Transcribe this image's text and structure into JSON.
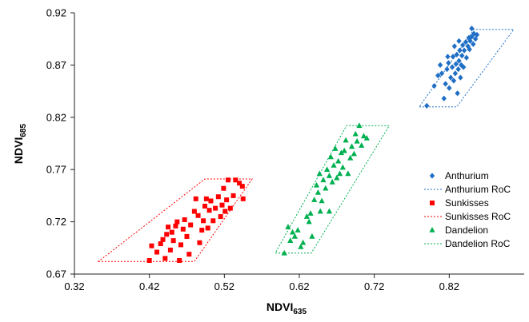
{
  "chart_data": {
    "type": "scatter",
    "xlabel": {
      "main": "NDVI",
      "sub": "635"
    },
    "ylabel": {
      "main": "NDVI",
      "sub": "685"
    },
    "xlim": [
      0.32,
      0.92
    ],
    "ylim": [
      0.67,
      0.92
    ],
    "x_ticks": [
      "0.32",
      "0.42",
      "0.52",
      "0.62",
      "0.72",
      "0.82"
    ],
    "y_ticks": [
      "0.67",
      "0.72",
      "0.77",
      "0.82",
      "0.87",
      "0.92"
    ],
    "legend_position": "right",
    "series": [
      {
        "name": "Anthurium",
        "marker": "diamond",
        "color": "#1F6FC5",
        "points": [
          [
            0.79,
            0.831
          ],
          [
            0.8,
            0.85
          ],
          [
            0.805,
            0.86
          ],
          [
            0.81,
            0.862
          ],
          [
            0.813,
            0.838
          ],
          [
            0.815,
            0.852
          ],
          [
            0.817,
            0.866
          ],
          [
            0.819,
            0.872
          ],
          [
            0.82,
            0.848
          ],
          [
            0.822,
            0.858
          ],
          [
            0.824,
            0.868
          ],
          [
            0.825,
            0.878
          ],
          [
            0.826,
            0.855
          ],
          [
            0.828,
            0.862
          ],
          [
            0.829,
            0.871
          ],
          [
            0.83,
            0.88
          ],
          [
            0.831,
            0.843
          ],
          [
            0.832,
            0.866
          ],
          [
            0.833,
            0.874
          ],
          [
            0.834,
            0.884
          ],
          [
            0.835,
            0.858
          ],
          [
            0.836,
            0.87
          ],
          [
            0.837,
            0.879
          ],
          [
            0.838,
            0.889
          ],
          [
            0.839,
            0.868
          ],
          [
            0.84,
            0.884
          ],
          [
            0.842,
            0.892
          ],
          [
            0.843,
            0.877
          ],
          [
            0.845,
            0.888
          ],
          [
            0.846,
            0.896
          ],
          [
            0.847,
            0.885
          ],
          [
            0.848,
            0.893
          ],
          [
            0.85,
            0.897
          ],
          [
            0.852,
            0.89
          ],
          [
            0.853,
            0.9
          ],
          [
            0.855,
            0.895
          ],
          [
            0.857,
            0.899
          ],
          [
            0.85,
            0.905
          ],
          [
            0.827,
            0.888
          ],
          [
            0.818,
            0.878
          ],
          [
            0.808,
            0.87
          ],
          [
            0.833,
            0.893
          ]
        ]
      },
      {
        "name": "Sunkisses",
        "marker": "square",
        "color": "#FF0000",
        "points": [
          [
            0.42,
            0.683
          ],
          [
            0.423,
            0.697
          ],
          [
            0.43,
            0.691
          ],
          [
            0.435,
            0.699
          ],
          [
            0.438,
            0.703
          ],
          [
            0.441,
            0.685
          ],
          [
            0.443,
            0.708
          ],
          [
            0.445,
            0.715
          ],
          [
            0.448,
            0.693
          ],
          [
            0.45,
            0.71
          ],
          [
            0.452,
            0.702
          ],
          [
            0.455,
            0.716
          ],
          [
            0.457,
            0.72
          ],
          [
            0.46,
            0.683
          ],
          [
            0.462,
            0.698
          ],
          [
            0.465,
            0.713
          ],
          [
            0.467,
            0.722
          ],
          [
            0.47,
            0.706
          ],
          [
            0.473,
            0.689
          ],
          [
            0.475,
            0.717
          ],
          [
            0.48,
            0.73
          ],
          [
            0.482,
            0.742
          ],
          [
            0.485,
            0.726
          ],
          [
            0.487,
            0.7
          ],
          [
            0.49,
            0.712
          ],
          [
            0.492,
            0.721
          ],
          [
            0.494,
            0.735
          ],
          [
            0.496,
            0.742
          ],
          [
            0.498,
            0.714
          ],
          [
            0.5,
            0.731
          ],
          [
            0.502,
            0.74
          ],
          [
            0.505,
            0.721
          ],
          [
            0.508,
            0.733
          ],
          [
            0.512,
            0.744
          ],
          [
            0.515,
            0.725
          ],
          [
            0.517,
            0.736
          ],
          [
            0.519,
            0.752
          ],
          [
            0.521,
            0.73
          ],
          [
            0.523,
            0.741
          ],
          [
            0.525,
            0.76
          ],
          [
            0.528,
            0.733
          ],
          [
            0.532,
            0.745
          ],
          [
            0.535,
            0.76
          ],
          [
            0.54,
            0.757
          ],
          [
            0.545,
            0.742
          ],
          [
            0.544,
            0.754
          ]
        ]
      },
      {
        "name": "Dandelion",
        "marker": "triangle",
        "color": "#00B050",
        "points": [
          [
            0.6,
            0.69
          ],
          [
            0.605,
            0.715
          ],
          [
            0.608,
            0.702
          ],
          [
            0.611,
            0.71
          ],
          [
            0.614,
            0.706
          ],
          [
            0.618,
            0.712
          ],
          [
            0.622,
            0.696
          ],
          [
            0.625,
            0.7
          ],
          [
            0.63,
            0.725
          ],
          [
            0.633,
            0.72
          ],
          [
            0.635,
            0.728
          ],
          [
            0.637,
            0.706
          ],
          [
            0.64,
            0.741
          ],
          [
            0.643,
            0.755
          ],
          [
            0.645,
            0.748
          ],
          [
            0.647,
            0.766
          ],
          [
            0.65,
            0.74
          ],
          [
            0.652,
            0.76
          ],
          [
            0.655,
            0.752
          ],
          [
            0.657,
            0.77
          ],
          [
            0.66,
            0.764
          ],
          [
            0.662,
            0.782
          ],
          [
            0.664,
            0.758
          ],
          [
            0.666,
            0.774
          ],
          [
            0.668,
            0.79
          ],
          [
            0.67,
            0.762
          ],
          [
            0.672,
            0.778
          ],
          [
            0.674,
            0.766
          ],
          [
            0.676,
            0.786
          ],
          [
            0.678,
            0.772
          ],
          [
            0.68,
            0.788
          ],
          [
            0.682,
            0.798
          ],
          [
            0.685,
            0.766
          ],
          [
            0.688,
            0.781
          ],
          [
            0.69,
            0.792
          ],
          [
            0.693,
            0.785
          ],
          [
            0.695,
            0.804
          ],
          [
            0.697,
            0.797
          ],
          [
            0.7,
            0.812
          ],
          [
            0.703,
            0.793
          ],
          [
            0.706,
            0.802
          ],
          [
            0.71,
            0.8
          ],
          [
            0.66,
            0.73
          ],
          [
            0.648,
            0.73
          ]
        ]
      }
    ],
    "regions": [
      {
        "name": "Anthurium RoC",
        "color": "#1F6FC5",
        "points": [
          [
            0.78,
            0.83
          ],
          [
            0.83,
            0.83
          ],
          [
            0.906,
            0.904
          ],
          [
            0.853,
            0.904
          ]
        ]
      },
      {
        "name": "Sunkisses RoC",
        "color": "#FF0000",
        "points": [
          [
            0.352,
            0.682
          ],
          [
            0.48,
            0.682
          ],
          [
            0.557,
            0.761
          ],
          [
            0.494,
            0.761
          ]
        ]
      },
      {
        "name": "Dandelion RoC",
        "color": "#00B050",
        "points": [
          [
            0.588,
            0.69
          ],
          [
            0.636,
            0.69
          ],
          [
            0.74,
            0.812
          ],
          [
            0.683,
            0.812
          ]
        ]
      }
    ],
    "legend": [
      {
        "label": "Anthurium",
        "kind": "marker",
        "marker": "diamond",
        "color": "#1F6FC5"
      },
      {
        "label": "Anthurium RoC",
        "kind": "line",
        "color": "#1F6FC5"
      },
      {
        "label": "Sunkisses",
        "kind": "marker",
        "marker": "square",
        "color": "#FF0000"
      },
      {
        "label": "Sunkisses RoC",
        "kind": "line",
        "color": "#FF0000"
      },
      {
        "label": "Dandelion",
        "kind": "marker",
        "marker": "triangle",
        "color": "#00B050"
      },
      {
        "label": "Dandelion RoC",
        "kind": "line",
        "color": "#00B050"
      }
    ]
  }
}
